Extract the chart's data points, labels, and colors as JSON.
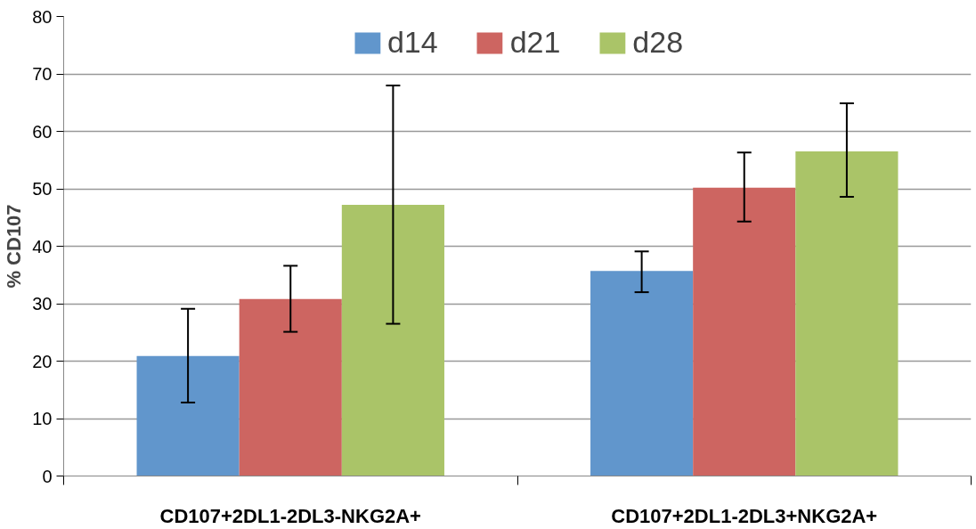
{
  "chart_data": {
    "type": "bar",
    "ylabel": "% CD107",
    "categories": [
      "CD107+2DL1-2DL3-NKG2A+",
      "CD107+2DL1-2DL3+NKG2A+"
    ],
    "series": [
      {
        "name": "d14",
        "color": "#6196cc",
        "values": [
          20.9,
          35.7
        ],
        "errors": [
          [
            12.8,
            29.1
          ],
          [
            32.0,
            39.1
          ]
        ]
      },
      {
        "name": "d21",
        "color": "#cd6561",
        "values": [
          30.8,
          50.2
        ],
        "errors": [
          [
            25.1,
            36.6
          ],
          [
            44.3,
            56.3
          ]
        ]
      },
      {
        "name": "d28",
        "color": "#aac468",
        "values": [
          47.2,
          56.5
        ],
        "errors": [
          [
            26.5,
            68.0
          ],
          [
            48.6,
            64.9
          ]
        ]
      }
    ],
    "ylim": [
      0,
      80
    ],
    "yticks": [
      0,
      10,
      20,
      30,
      40,
      50,
      60,
      70,
      80
    ],
    "grid": "y",
    "legend": "top"
  }
}
